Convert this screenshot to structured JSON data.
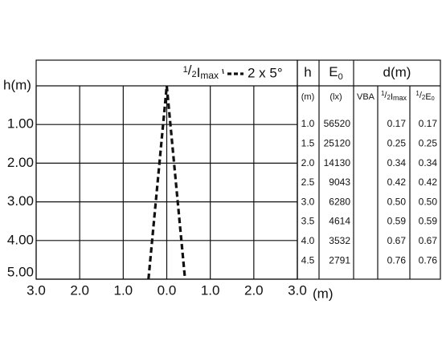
{
  "chart_data": {
    "type": "line",
    "y_label": "h(m)",
    "x_label": "(m)",
    "xlim": [
      -3,
      3
    ],
    "ylim": [
      0,
      5
    ],
    "y_inverted": true,
    "grid": true,
    "xticks": [
      {
        "value": -3,
        "label": "3.0"
      },
      {
        "value": -2,
        "label": "2.0"
      },
      {
        "value": -1,
        "label": "1.0"
      },
      {
        "value": 0,
        "label": "0.0"
      },
      {
        "value": 1,
        "label": "1.0"
      },
      {
        "value": 2,
        "label": "2.0"
      },
      {
        "value": 3,
        "label": "3.0"
      }
    ],
    "yticks": [
      {
        "value": 1,
        "label": "1.00"
      },
      {
        "value": 2,
        "label": "2.00"
      },
      {
        "value": 3,
        "label": "3.00"
      },
      {
        "value": 4,
        "label": "4.00"
      },
      {
        "value": 5,
        "label": "5.00"
      }
    ],
    "legend_title": {
      "frac_top": "1",
      "frac_bottom": "2",
      "main": "I",
      "main_sub": "max"
    },
    "series": [
      {
        "name": "2 x 5°",
        "color": "#111111",
        "dashed": true,
        "x": [
          -0.42,
          0,
          0.42
        ],
        "values": [
          5,
          0,
          5
        ]
      }
    ]
  },
  "table": {
    "header": {
      "h": "h",
      "e0": "E",
      "e0_sub": "0",
      "d": "d(m)"
    },
    "subheader": {
      "h_unit": "(m)",
      "e0_unit": "(lx)",
      "vba": "VBA",
      "imax_top": "1",
      "imax_bottom": "2",
      "imax_main": "I",
      "imax_sub": "max",
      "e_top": "1",
      "e_bottom": "2",
      "e_main": "E",
      "e_sub": "0"
    },
    "rows": [
      [
        "1.0",
        "56520",
        "0.17",
        "0.17"
      ],
      [
        "1.5",
        "25120",
        "0.25",
        "0.25"
      ],
      [
        "2.0",
        "14130",
        "0.34",
        "0.34"
      ],
      [
        "2.5",
        "9043",
        "0.42",
        "0.42"
      ],
      [
        "3.0",
        "6280",
        "0.50",
        "0.50"
      ],
      [
        "3.5",
        "4614",
        "0.59",
        "0.59"
      ],
      [
        "4.0",
        "3532",
        "0.67",
        "0.67"
      ],
      [
        "4.5",
        "2791",
        "0.76",
        "0.76"
      ]
    ]
  }
}
